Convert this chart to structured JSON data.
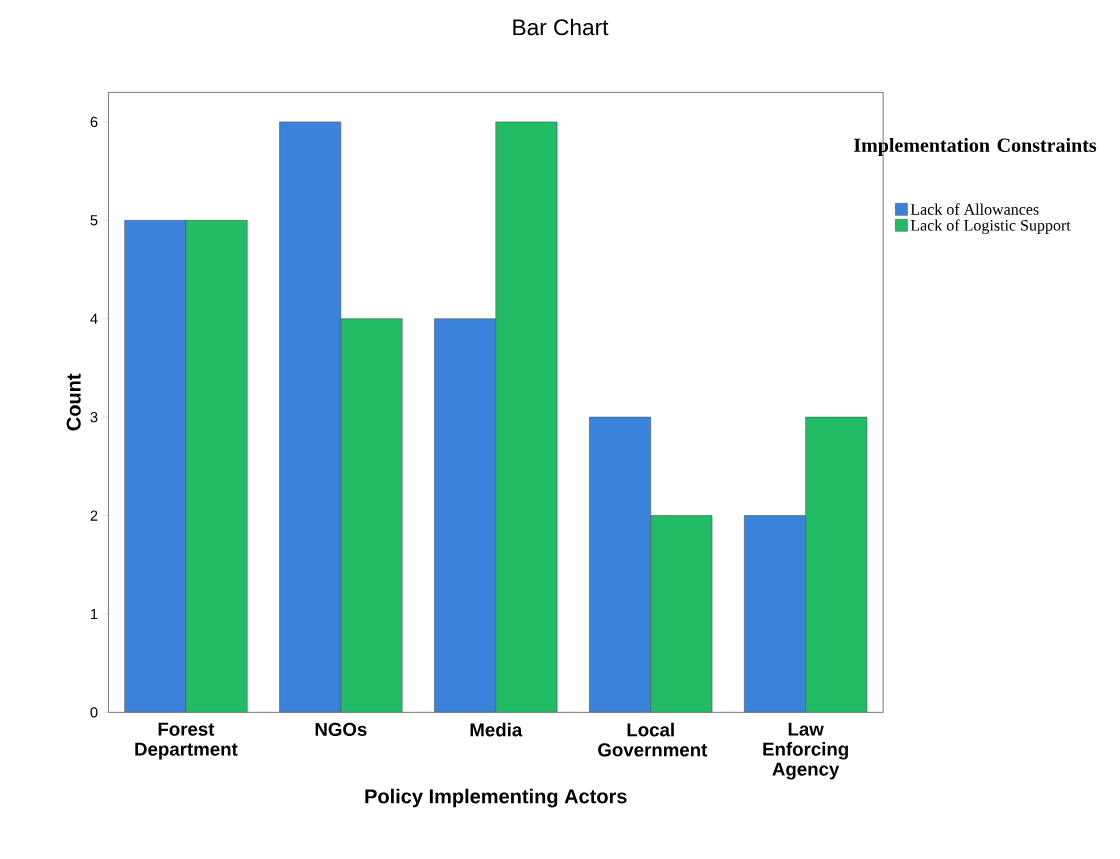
{
  "chart_data": {
    "type": "bar",
    "title": "Bar Chart",
    "xlabel": "Policy Implementing Actors",
    "ylabel": "Count",
    "legend_title": "Implementation Constraints",
    "categories": [
      "Forest Department",
      "NGOs",
      "Media",
      "Local Government",
      "Law Enforcing Agency"
    ],
    "series": [
      {
        "name": "Lack of Allowances",
        "color": "#3b82db",
        "values": [
          5,
          6,
          4,
          3,
          2
        ]
      },
      {
        "name": "Lack of Logistic Support",
        "color": "#22bb66",
        "values": [
          5,
          4,
          6,
          2,
          3
        ]
      }
    ],
    "ylim": [
      0,
      6.3
    ],
    "yticks": [
      0,
      1,
      2,
      3,
      4,
      5,
      6
    ],
    "grid": false,
    "legend": "right"
  }
}
